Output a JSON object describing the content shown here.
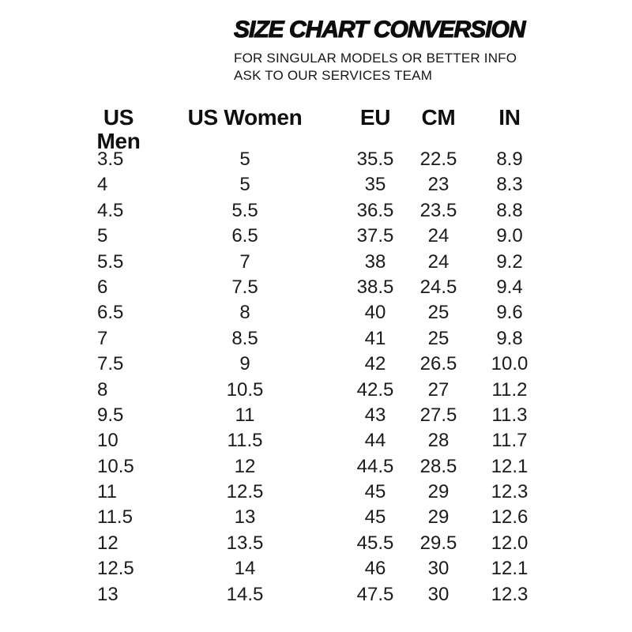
{
  "page": {
    "background_color": "#ffffff",
    "text_color": "#161616",
    "title_color": "#0d0d0d"
  },
  "header": {
    "title": "SIZE CHART CONVERSION",
    "subtitle_line1": "FOR SINGULAR MODELS OR BETTER INFO",
    "subtitle_line2": "ASK TO OUR SERVICES TEAM"
  },
  "table": {
    "columns": [
      "US Men",
      "US Women",
      "EU",
      "CM",
      "IN"
    ],
    "keys": [
      "us-men",
      "us-women",
      "eu",
      "cm",
      "in"
    ],
    "rows": [
      [
        "3.5",
        "5",
        "35.5",
        "22.5",
        "8.9"
      ],
      [
        "4",
        "5",
        "35",
        "23",
        "8.3"
      ],
      [
        "4.5",
        "5.5",
        "36.5",
        "23.5",
        "8.8"
      ],
      [
        "5",
        "6.5",
        "37.5",
        "24",
        "9.0"
      ],
      [
        "5.5",
        "7",
        "38",
        "24",
        "9.2"
      ],
      [
        "6",
        "7.5",
        "38.5",
        "24.5",
        "9.4"
      ],
      [
        "6.5",
        "8",
        "40",
        "25",
        "9.6"
      ],
      [
        "7",
        "8.5",
        "41",
        "25",
        "9.8"
      ],
      [
        "7.5",
        "9",
        "42",
        "26.5",
        "10.0"
      ],
      [
        "8",
        "10.5",
        "42.5",
        "27",
        "11.2"
      ],
      [
        "9.5",
        "11",
        "43",
        "27.5",
        "11.3"
      ],
      [
        "10",
        "11.5",
        "44",
        "28",
        "11.7"
      ],
      [
        "10.5",
        "12",
        "44.5",
        "28.5",
        "12.1"
      ],
      [
        "11",
        "12.5",
        "45",
        "29",
        "12.3"
      ],
      [
        "11.5",
        "13",
        "45",
        "29",
        "12.6"
      ],
      [
        "12",
        "13.5",
        "45.5",
        "29.5",
        "12.0"
      ],
      [
        "12.5",
        "14",
        "46",
        "30",
        "12.1"
      ],
      [
        "13",
        "14.5",
        "47.5",
        "30",
        "12.3"
      ]
    ]
  },
  "chart_data": {
    "type": "table",
    "title": "SIZE CHART CONVERSION",
    "subtitle": "FOR SINGULAR MODELS OR BETTER INFO ASK TO OUR SERVICES TEAM",
    "columns": [
      "US Men",
      "US Women",
      "EU",
      "CM",
      "IN"
    ],
    "rows": [
      [
        3.5,
        5,
        35.5,
        22.5,
        8.9
      ],
      [
        4,
        5,
        35,
        23,
        8.3
      ],
      [
        4.5,
        5.5,
        36.5,
        23.5,
        8.8
      ],
      [
        5,
        6.5,
        37.5,
        24,
        9.0
      ],
      [
        5.5,
        7,
        38,
        24,
        9.2
      ],
      [
        6,
        7.5,
        38.5,
        24.5,
        9.4
      ],
      [
        6.5,
        8,
        40,
        25,
        9.6
      ],
      [
        7,
        8.5,
        41,
        25,
        9.8
      ],
      [
        7.5,
        9,
        42,
        26.5,
        10.0
      ],
      [
        8,
        10.5,
        42.5,
        27,
        11.2
      ],
      [
        9.5,
        11,
        43,
        27.5,
        11.3
      ],
      [
        10,
        11.5,
        44,
        28,
        11.7
      ],
      [
        10.5,
        12,
        44.5,
        28.5,
        12.1
      ],
      [
        11,
        12.5,
        45,
        29,
        12.3
      ],
      [
        11.5,
        13,
        45,
        29,
        12.6
      ],
      [
        12,
        13.5,
        45.5,
        29.5,
        12.0
      ],
      [
        12.5,
        14,
        46,
        30,
        12.1
      ],
      [
        13,
        14.5,
        47.5,
        30,
        12.3
      ]
    ]
  }
}
